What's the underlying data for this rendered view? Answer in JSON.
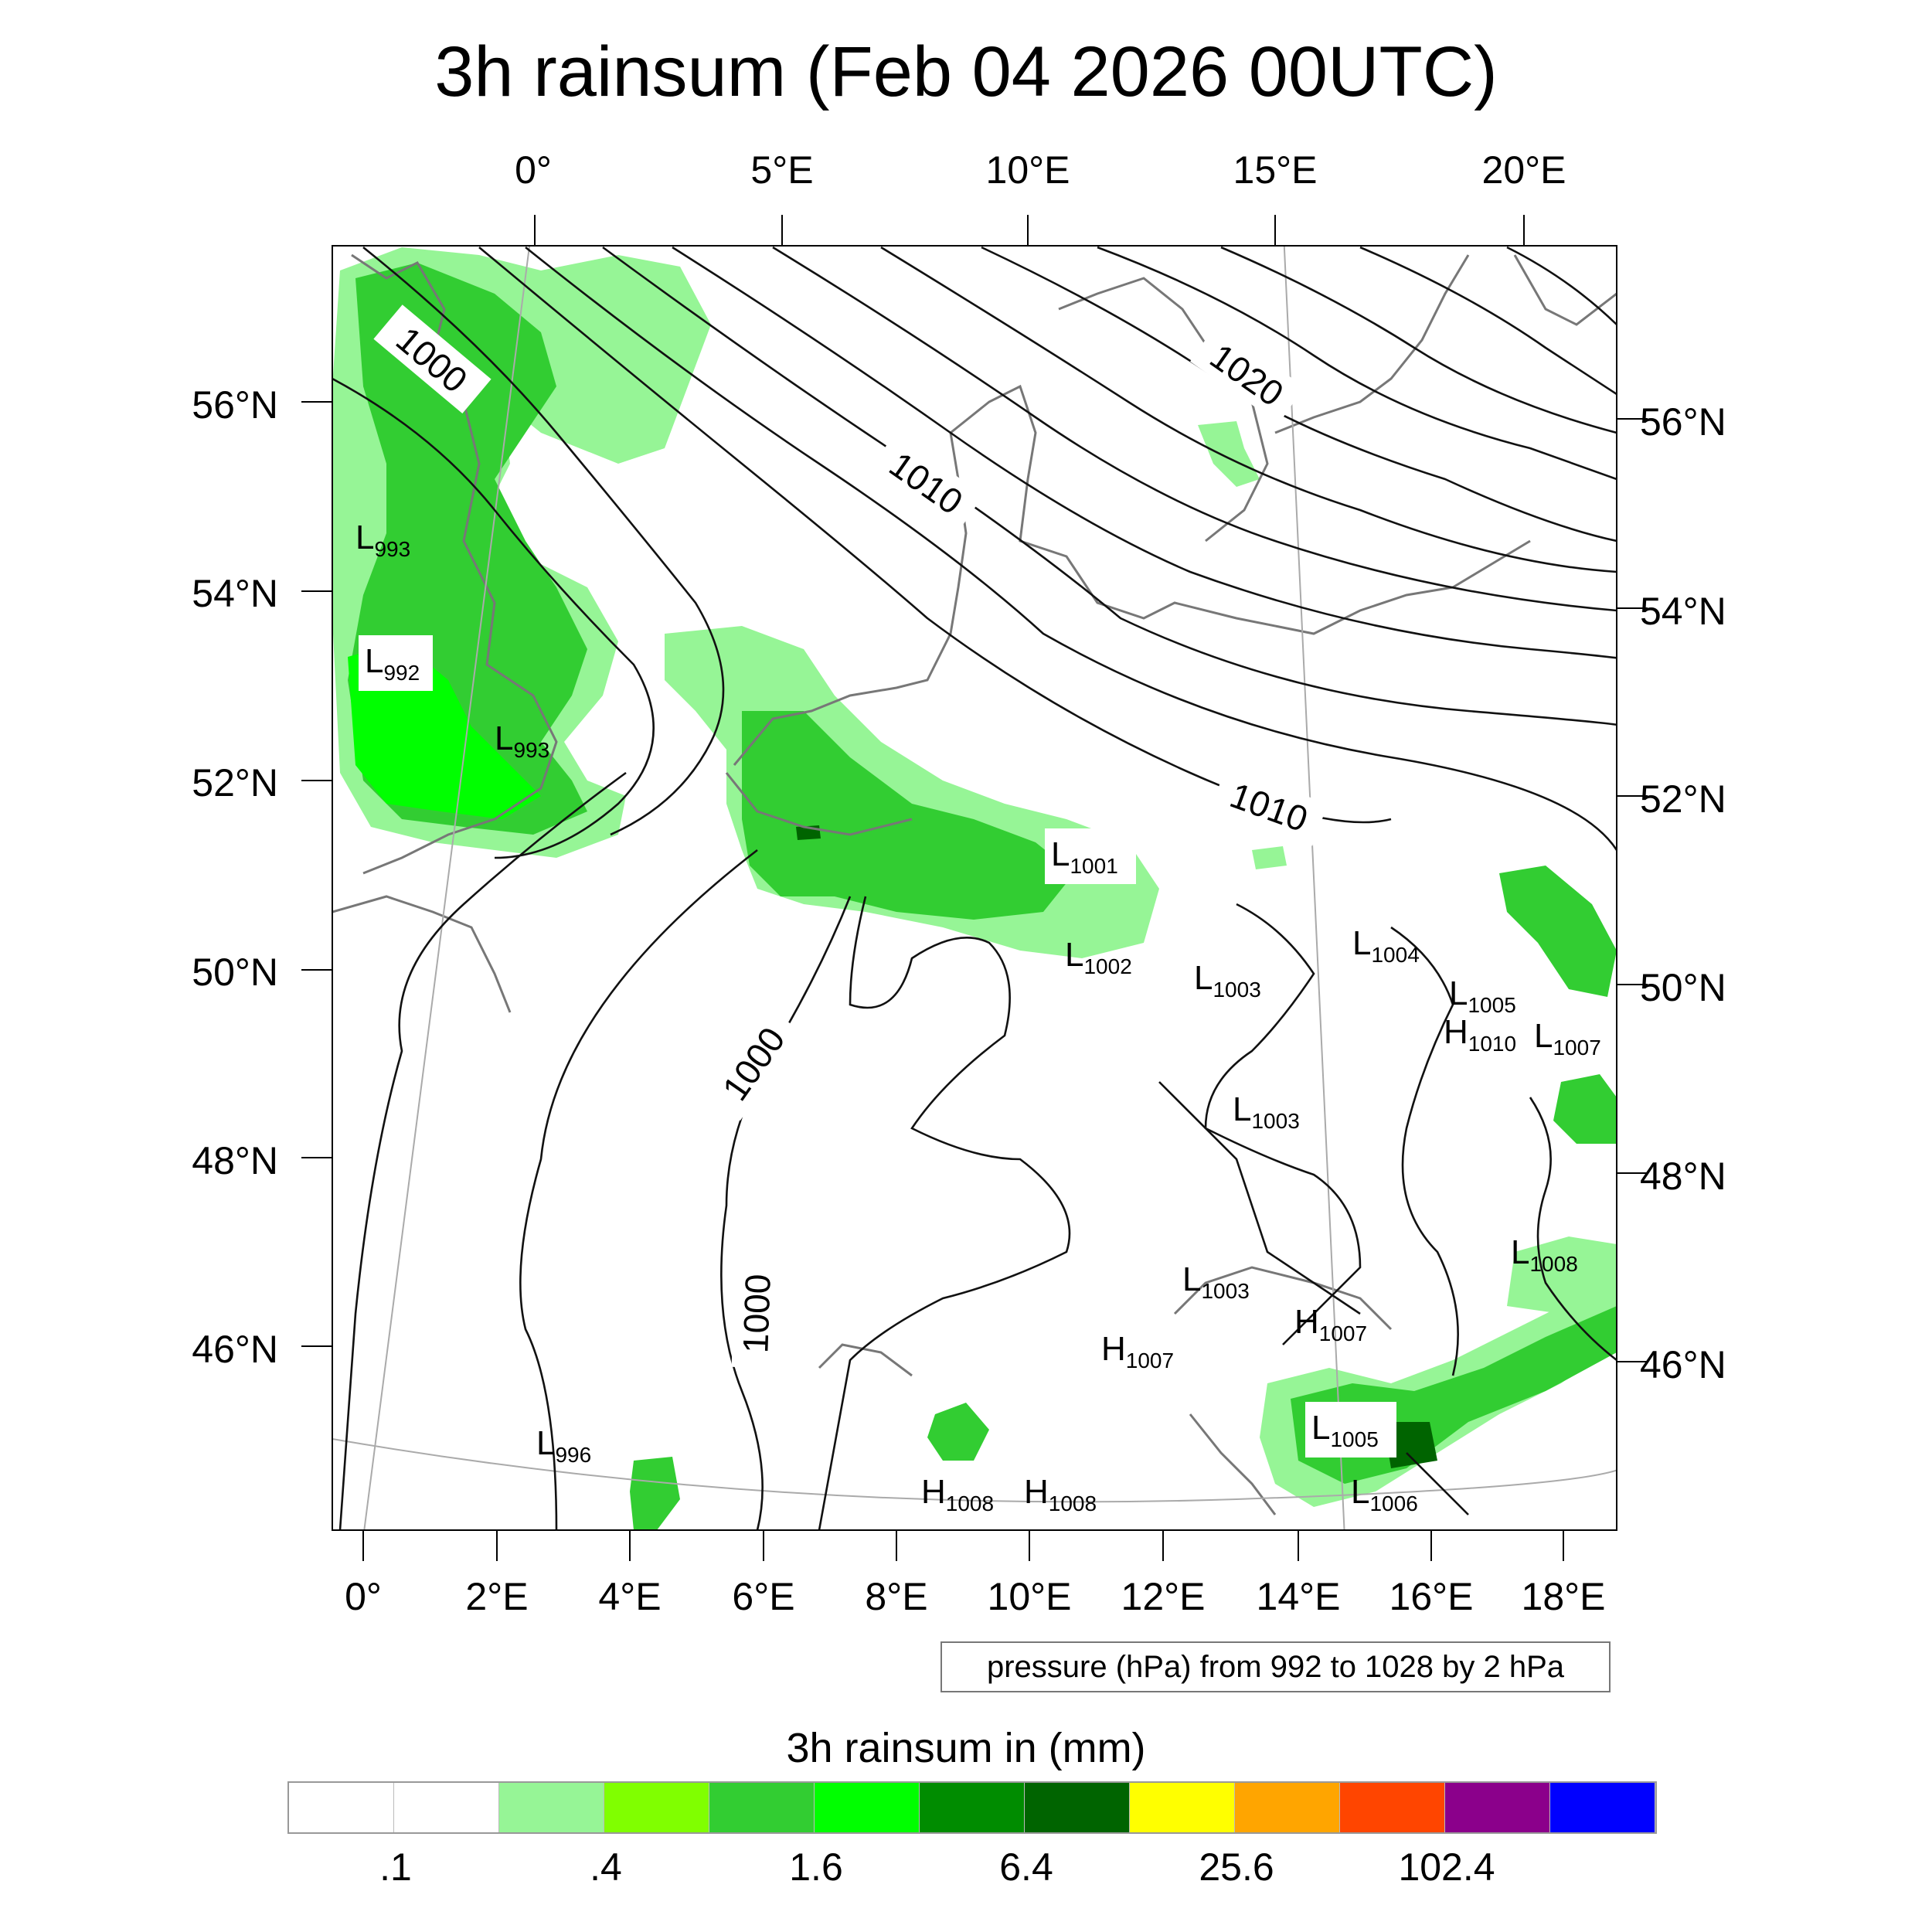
{
  "title": "3h rainsum (Feb 04 2026 00UTC)",
  "top_lon_labels": [
    "0°",
    "5°E",
    "10°E",
    "15°E",
    "20°E"
  ],
  "bottom_lon_labels": [
    "0°",
    "2°E",
    "4°E",
    "6°E",
    "8°E",
    "10°E",
    "12°E",
    "14°E",
    "16°E",
    "18°E"
  ],
  "left_lat_labels": [
    "56°N",
    "54°N",
    "52°N",
    "50°N",
    "48°N",
    "46°N"
  ],
  "right_lat_labels": [
    "56°N",
    "54°N",
    "52°N",
    "50°N",
    "48°N",
    "46°N"
  ],
  "contour_labels": [
    "1000",
    "1010",
    "1020",
    "1010",
    "1000",
    "1000"
  ],
  "pressure_centers": [
    {
      "t": "L",
      "v": "993"
    },
    {
      "t": "L",
      "v": "992"
    },
    {
      "t": "L",
      "v": "993"
    },
    {
      "t": "L",
      "v": "1001"
    },
    {
      "t": "L",
      "v": "1002"
    },
    {
      "t": "L",
      "v": "1003"
    },
    {
      "t": "L",
      "v": "1004"
    },
    {
      "t": "L",
      "v": "1005"
    },
    {
      "t": "H",
      "v": "1010"
    },
    {
      "t": "L",
      "v": "1007"
    },
    {
      "t": "L",
      "v": "1003"
    },
    {
      "t": "L",
      "v": "1008"
    },
    {
      "t": "L",
      "v": "1003"
    },
    {
      "t": "H",
      "v": "1007"
    },
    {
      "t": "H",
      "v": "1007"
    },
    {
      "t": "L",
      "v": "996"
    },
    {
      "t": "L",
      "v": "1005"
    },
    {
      "t": "L",
      "v": "1006"
    },
    {
      "t": "H",
      "v": "1008"
    },
    {
      "t": "H",
      "v": "1008"
    }
  ],
  "pressure_note": "pressure (hPa) from 992 to 1028 by 2 hPa",
  "colorbar": {
    "title": "3h rainsum in (mm)",
    "colors": [
      "#ffffff",
      "#ffffff",
      "#96f596",
      "#80ff00",
      "#32cd32",
      "#00ff00",
      "#008c00",
      "#006400",
      "#ffff00",
      "#ffa500",
      "#ff4500",
      "#8b008b",
      "#0000ff"
    ],
    "labels": [
      ".1",
      ".4",
      "1.6",
      "6.4",
      "25.6",
      "102.4"
    ]
  }
}
